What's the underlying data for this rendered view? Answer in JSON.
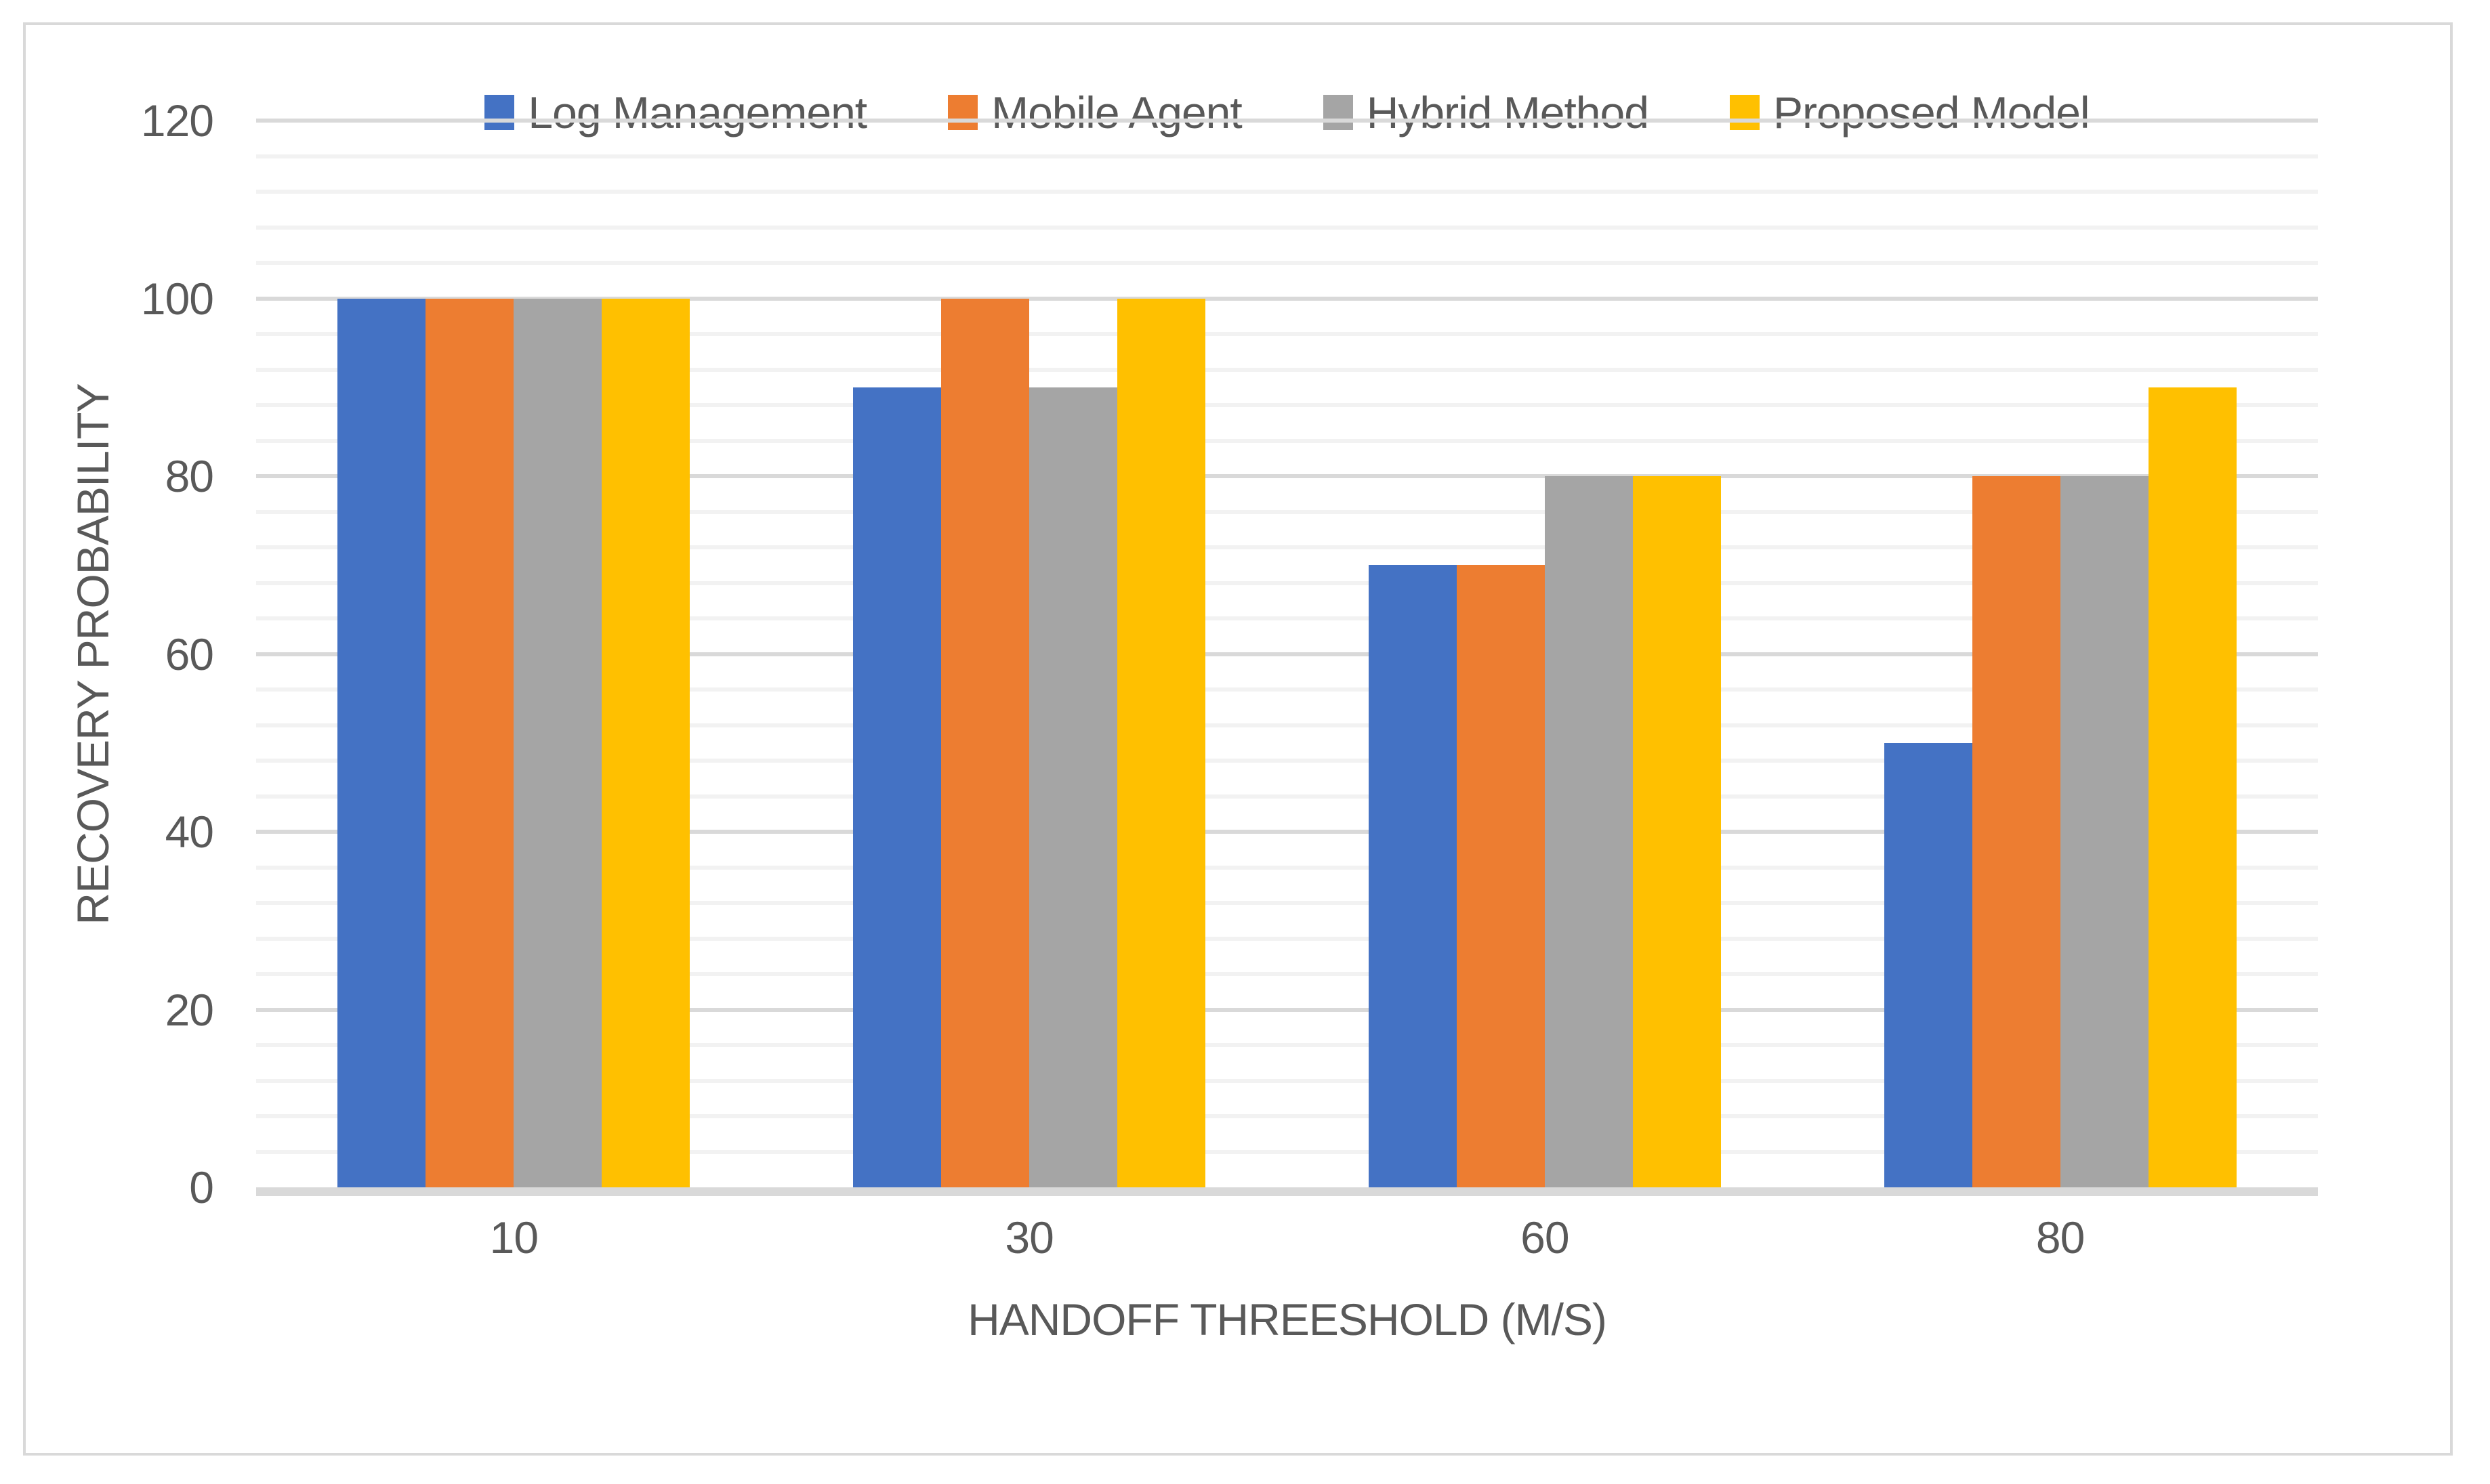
{
  "chart_data": {
    "type": "bar",
    "title": "",
    "categories": [
      "10",
      "30",
      "60",
      "80"
    ],
    "series": [
      {
        "name": "Log Management",
        "color": "#4472C4",
        "values": [
          100,
          90,
          70,
          50
        ]
      },
      {
        "name": "Mobile Agent",
        "color": "#ED7D31",
        "values": [
          100,
          100,
          70,
          80
        ]
      },
      {
        "name": "Hybrid Method",
        "color": "#A5A5A5",
        "values": [
          100,
          90,
          80,
          80
        ]
      },
      {
        "name": "Proposed Model",
        "color": "#FFC000",
        "values": [
          100,
          100,
          80,
          90
        ]
      }
    ],
    "xlabel": "HANDOFF THREESHOLD (M/S)",
    "ylabel": "RECOVERY PROBABILITY",
    "ylim": [
      0,
      120
    ],
    "y_major_tick": 20,
    "y_minor_tick": 4,
    "y_tick_labels": [
      "0",
      "20",
      "40",
      "60",
      "80",
      "100",
      "120"
    ],
    "legend_position": "top",
    "grid": "horizontal major and minor gridlines"
  },
  "colors": {
    "background": "#FFFFFF",
    "chart_border": "#D9D9D9",
    "gridline_major": "#D9D9D9",
    "gridline_minor": "#F2F2F2",
    "axis_line": "#D9D9D9",
    "text": "#595959"
  }
}
